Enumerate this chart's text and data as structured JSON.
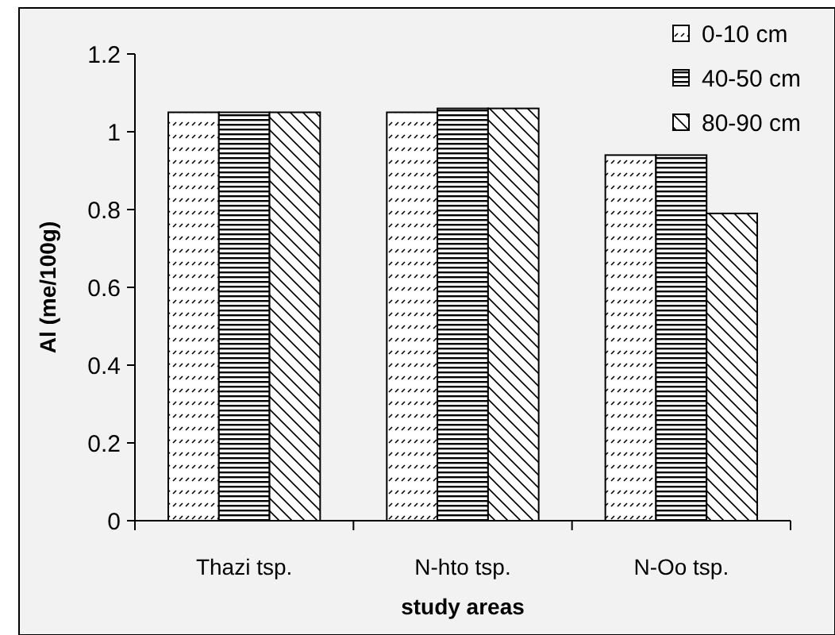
{
  "chart_data": {
    "type": "bar",
    "xlabel": "study areas",
    "ylabel": "Al (me/100g)",
    "categories": [
      "Thazi tsp.",
      "N-hto tsp.",
      "N-Oo tsp."
    ],
    "series": [
      {
        "name": "0-10 cm",
        "color": "#000000",
        "values": [
          1.05,
          1.05,
          0.94
        ]
      },
      {
        "name": "40-50 cm",
        "color": "#000000",
        "values": [
          1.05,
          1.06,
          0.94
        ]
      },
      {
        "name": "80-90 cm",
        "color": "#000000",
        "values": [
          1.05,
          1.06,
          0.79
        ]
      }
    ],
    "ylim": [
      0,
      1.2
    ],
    "yticks": [
      0,
      0.2,
      0.4,
      0.6,
      0.8,
      1,
      1.2
    ],
    "legend": "top right",
    "grid": false
  }
}
